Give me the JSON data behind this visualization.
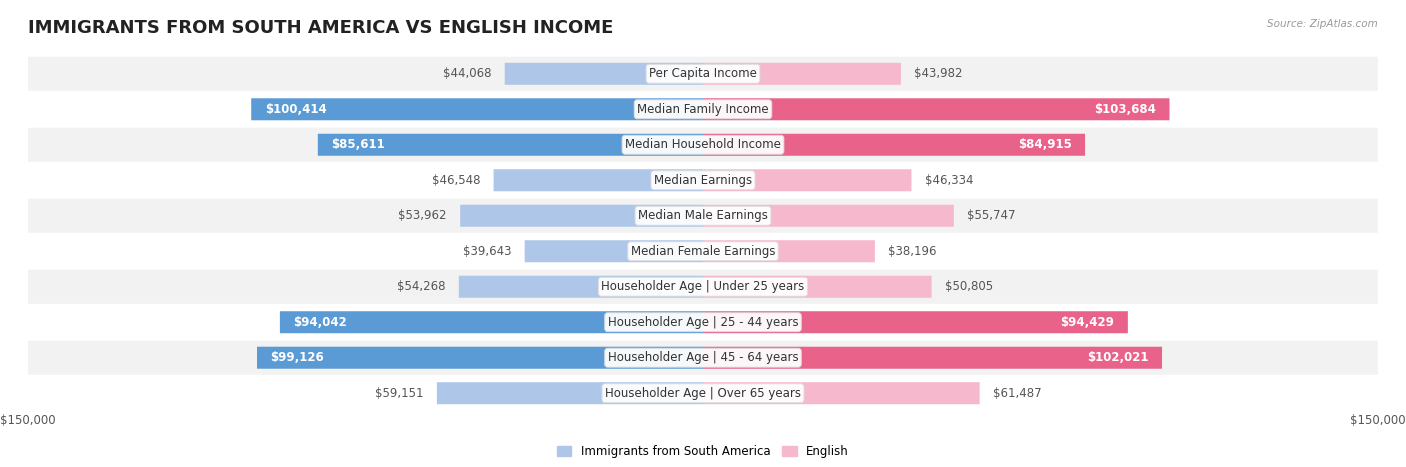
{
  "title": "IMMIGRANTS FROM SOUTH AMERICA VS ENGLISH INCOME",
  "source": "Source: ZipAtlas.com",
  "categories": [
    "Per Capita Income",
    "Median Family Income",
    "Median Household Income",
    "Median Earnings",
    "Median Male Earnings",
    "Median Female Earnings",
    "Householder Age | Under 25 years",
    "Householder Age | 25 - 44 years",
    "Householder Age | 45 - 64 years",
    "Householder Age | Over 65 years"
  ],
  "left_values": [
    44068,
    100414,
    85611,
    46548,
    53962,
    39643,
    54268,
    94042,
    99126,
    59151
  ],
  "right_values": [
    43982,
    103684,
    84915,
    46334,
    55747,
    38196,
    50805,
    94429,
    102021,
    61487
  ],
  "left_labels": [
    "$44,068",
    "$100,414",
    "$85,611",
    "$46,548",
    "$53,962",
    "$39,643",
    "$54,268",
    "$94,042",
    "$99,126",
    "$59,151"
  ],
  "right_labels": [
    "$43,982",
    "$103,684",
    "$84,915",
    "$46,334",
    "$55,747",
    "$38,196",
    "$50,805",
    "$94,429",
    "$102,021",
    "$61,487"
  ],
  "left_color_normal": "#aec6e8",
  "left_color_highlight": "#5b9bd5",
  "right_color_normal": "#f5b8cc",
  "right_color_highlight": "#e8628a",
  "max_value": 150000,
  "legend_left": "Immigrants from South America",
  "legend_right": "English",
  "row_colors": [
    "#f2f2f2",
    "#ffffff",
    "#f2f2f2",
    "#ffffff",
    "#f2f2f2",
    "#ffffff",
    "#f2f2f2",
    "#ffffff",
    "#f2f2f2",
    "#ffffff"
  ],
  "title_fontsize": 13,
  "label_fontsize": 8.5,
  "category_fontsize": 8.5
}
